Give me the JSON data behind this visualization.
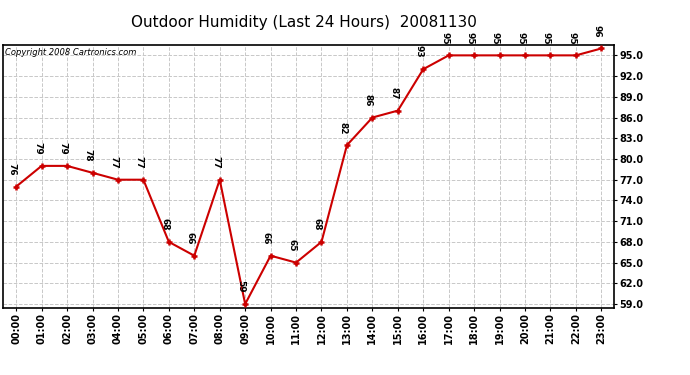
{
  "title": "Outdoor Humidity (Last 24 Hours)  20081130",
  "copyright_text": "Copyright 2008 Cartronics.com",
  "hours": [
    0,
    1,
    2,
    3,
    4,
    5,
    6,
    7,
    8,
    9,
    10,
    11,
    12,
    13,
    14,
    15,
    16,
    17,
    18,
    19,
    20,
    21,
    22,
    23
  ],
  "values": [
    76,
    79,
    79,
    78,
    77,
    77,
    68,
    66,
    77,
    59,
    66,
    65,
    68,
    82,
    86,
    87,
    93,
    95,
    95,
    95,
    95,
    95,
    95,
    96
  ],
  "line_color": "#cc0000",
  "bg_color": "#ffffff",
  "grid_color": "#c8c8c8",
  "ylim_min": 58.5,
  "ylim_max": 96.5,
  "yticks": [
    59.0,
    62.0,
    65.0,
    68.0,
    71.0,
    74.0,
    77.0,
    80.0,
    83.0,
    86.0,
    89.0,
    92.0,
    95.0
  ],
  "title_fontsize": 11,
  "tick_fontsize": 7,
  "annotation_fontsize": 6.5
}
